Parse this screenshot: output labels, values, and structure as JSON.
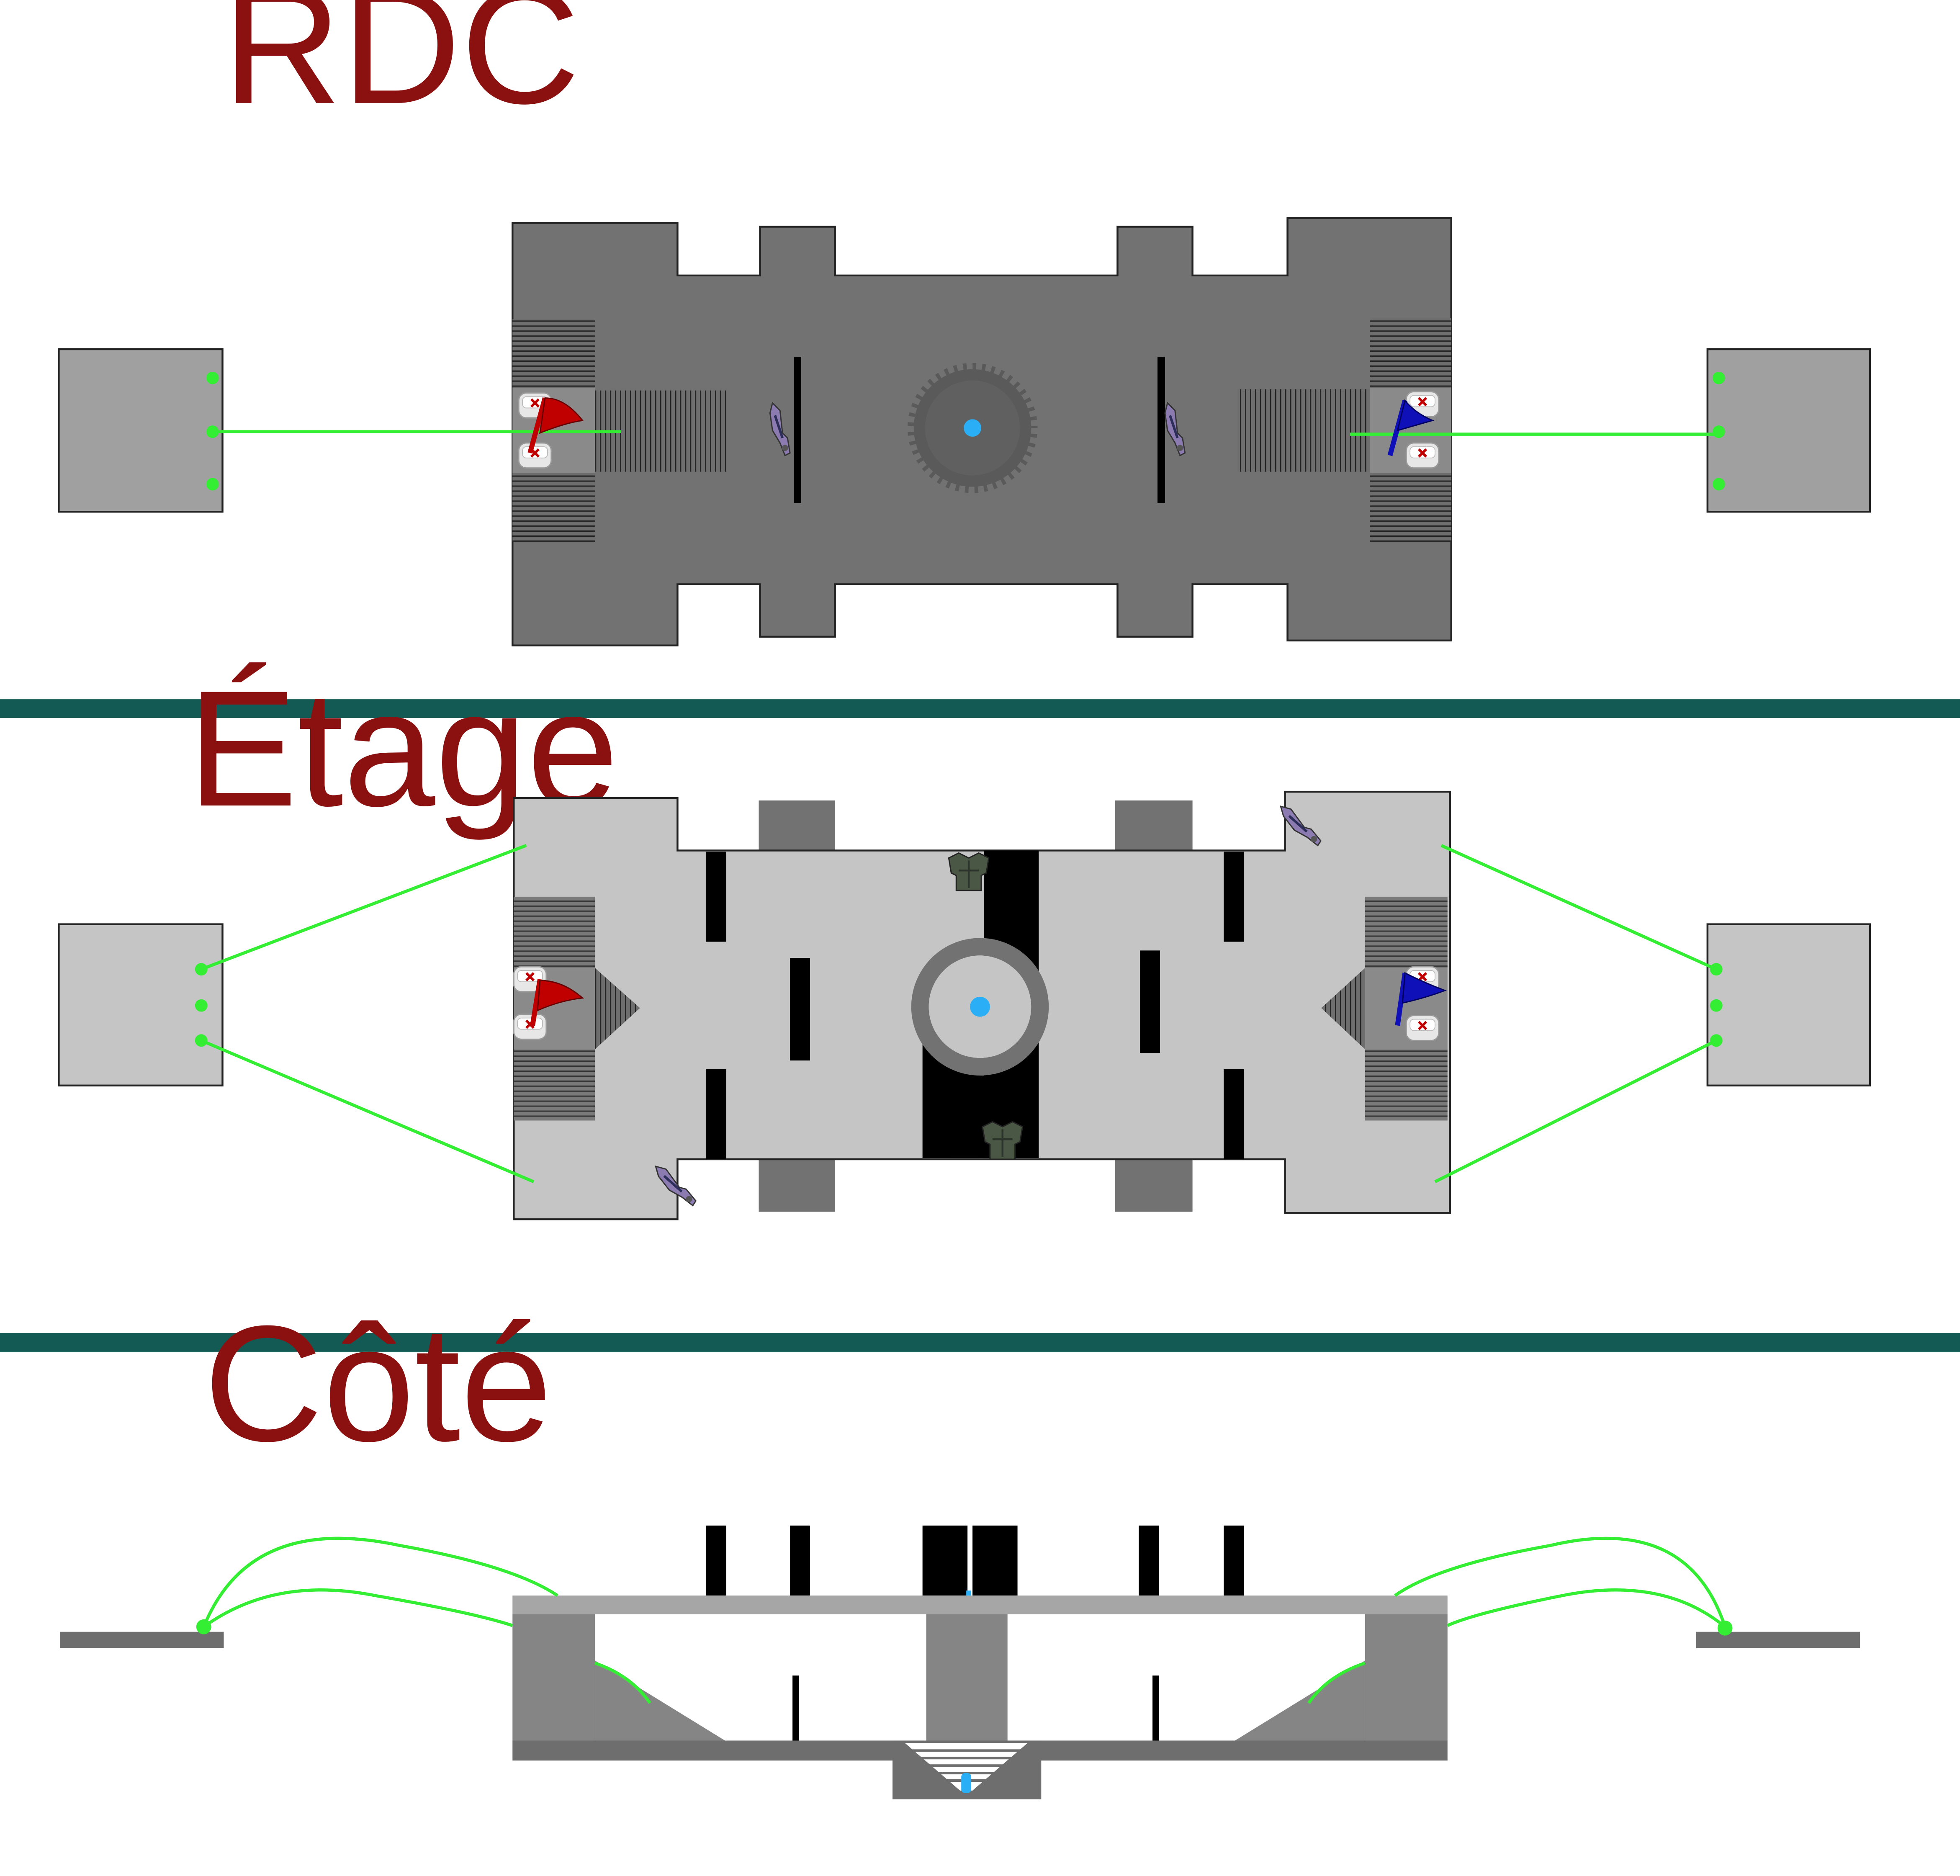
{
  "sections": {
    "ground_floor": {
      "title": "RDC"
    },
    "upper_floor": {
      "title": "Étage"
    },
    "side_view": {
      "title": "Côté"
    }
  },
  "colors": {
    "title": "#8b1010",
    "divider": "#135a55",
    "floor_dark": "#727272",
    "floor_light": "#c5c5c5",
    "platform": "#a0a0a0",
    "tower_block": "#727272",
    "stairs": "#555555",
    "wall": "#000000",
    "teleporter_line": "#33ee33",
    "center_dot": "#2aaef5",
    "side_deck": "#a6a6a6",
    "side_structure": "#858585",
    "red_team": "#c00000",
    "blue_team": "#1010b8"
  },
  "icons": {
    "red_flag": "red-flag-icon",
    "blue_flag": "blue-flag-icon",
    "health_pack": "health-pack-icon",
    "weapon": "rifle-icon",
    "armor": "armor-icon",
    "teleporter": "teleporter-node-icon"
  }
}
